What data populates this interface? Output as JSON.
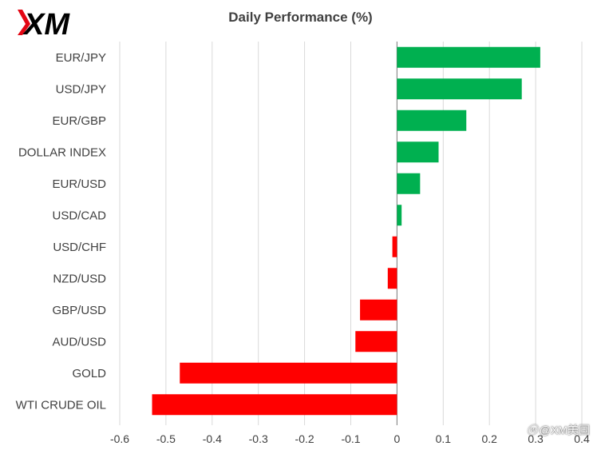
{
  "header": {
    "logo_text": "XM",
    "title": "Daily Performance (%)"
  },
  "watermark": {
    "icon": "weibo-icon",
    "text": "@XM美国"
  },
  "colors": {
    "positive": "#00B050",
    "negative": "#FF0000",
    "gridline": "#D9D9D9",
    "axis": "#808080",
    "label": "#404040",
    "logo": "#000000",
    "logo_accent": "#E30613"
  },
  "chart_data": {
    "type": "bar",
    "orientation": "horizontal",
    "title": "Daily Performance (%)",
    "categories": [
      "EUR/JPY",
      "USD/JPY",
      "EUR/GBP",
      "DOLLAR INDEX",
      "EUR/USD",
      "USD/CAD",
      "USD/CHF",
      "NZD/USD",
      "GBP/USD",
      "AUD/USD",
      "GOLD",
      "WTI CRUDE OIL"
    ],
    "values": [
      0.31,
      0.27,
      0.15,
      0.09,
      0.05,
      0.01,
      -0.01,
      -0.02,
      -0.08,
      -0.09,
      -0.47,
      -0.53
    ],
    "xlim": [
      -0.6,
      0.4
    ],
    "xticks": [
      -0.6,
      -0.5,
      -0.4,
      -0.3,
      -0.2,
      -0.1,
      0,
      0.1,
      0.2,
      0.3,
      0.4
    ],
    "xtick_labels": [
      "-0.6",
      "-0.5",
      "-0.4",
      "-0.3",
      "-0.2",
      "-0.1",
      "0",
      "0.1",
      "0.2",
      "0.3",
      "0.4"
    ],
    "grid": true,
    "legend": "none"
  }
}
